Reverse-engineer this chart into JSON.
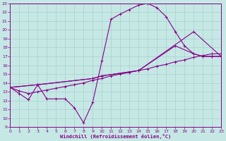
{
  "xlabel": "Windchill (Refroidissement éolien,°C)",
  "bg_color": "#c5e8e5",
  "line_color": "#880088",
  "grid_color": "#a8d0cc",
  "xlim": [
    0,
    23
  ],
  "ylim": [
    9,
    23
  ],
  "xticks": [
    0,
    1,
    2,
    3,
    4,
    5,
    6,
    7,
    8,
    9,
    10,
    11,
    12,
    13,
    14,
    15,
    16,
    17,
    18,
    19,
    20,
    21,
    22,
    23
  ],
  "yticks": [
    9,
    10,
    11,
    12,
    13,
    14,
    15,
    16,
    17,
    18,
    19,
    20,
    21,
    22,
    23
  ],
  "line1_x": [
    0,
    1,
    2,
    3,
    4,
    5,
    6,
    7,
    8,
    9,
    10,
    11,
    12,
    13,
    14,
    15,
    16,
    17,
    18,
    19,
    20,
    21,
    22,
    23
  ],
  "line1_y": [
    13.5,
    12.8,
    12.1,
    13.8,
    12.2,
    12.2,
    12.2,
    11.2,
    9.5,
    11.8,
    16.5,
    21.2,
    21.8,
    22.3,
    22.8,
    23.0,
    22.5,
    21.5,
    19.8,
    18.2,
    17.3,
    17.0,
    17.0,
    17.0
  ],
  "line2_x": [
    0,
    1,
    2,
    3,
    4,
    5,
    6,
    7,
    8,
    9,
    10,
    11,
    12,
    13,
    14,
    15,
    16,
    17,
    18,
    19,
    20,
    21,
    22,
    23
  ],
  "line2_y": [
    13.5,
    13.1,
    12.8,
    13.0,
    13.2,
    13.4,
    13.6,
    13.8,
    14.0,
    14.3,
    14.5,
    14.8,
    15.0,
    15.2,
    15.4,
    15.6,
    15.9,
    16.1,
    16.4,
    16.6,
    16.9,
    17.1,
    17.3,
    17.3
  ],
  "line3_x": [
    0,
    3,
    9,
    10,
    14,
    18,
    20,
    21,
    22,
    23
  ],
  "line3_y": [
    13.5,
    13.8,
    14.5,
    14.8,
    15.4,
    18.2,
    17.3,
    17.0,
    17.0,
    17.0
  ],
  "line4_x": [
    0,
    3,
    9,
    10,
    14,
    20,
    23
  ],
  "line4_y": [
    13.5,
    13.8,
    14.5,
    14.8,
    15.4,
    19.8,
    17.0
  ]
}
